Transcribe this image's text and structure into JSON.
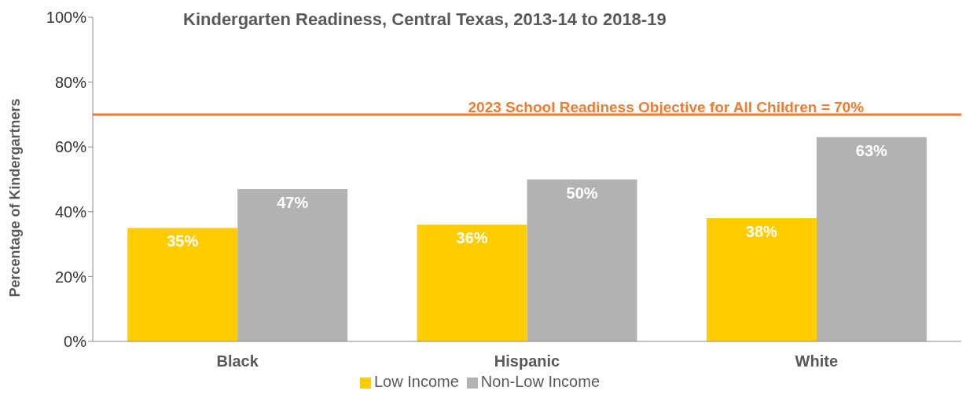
{
  "chart_data": {
    "type": "bar",
    "title": "Kindergarten Readiness, Central Texas, 2013-14 to 2018-19",
    "ylabel": "Percentage of Kindergartners",
    "categories": [
      "Black",
      "Hispanic",
      "White"
    ],
    "series": [
      {
        "name": "Low Income",
        "color": "#ffcc00",
        "values": [
          35,
          36,
          38
        ],
        "value_labels": [
          "35%",
          "36%",
          "38%"
        ]
      },
      {
        "name": "Non-Low Income",
        "color": "#b2b2b2",
        "values": [
          47,
          50,
          63
        ],
        "value_labels": [
          "47%",
          "50%",
          "63%"
        ]
      }
    ],
    "ylim": [
      0,
      100
    ],
    "yticks": [
      {
        "value": 0,
        "label": "0%"
      },
      {
        "value": 20,
        "label": "20%"
      },
      {
        "value": 40,
        "label": "40%"
      },
      {
        "value": 60,
        "label": "60%"
      },
      {
        "value": 80,
        "label": "80%"
      },
      {
        "value": 100,
        "label": "100%"
      }
    ],
    "ref_lines": [
      {
        "axis": "y",
        "value": 70,
        "label": "2023 School Readiness Objective for All Children = 70%",
        "color": "#ed7d31"
      }
    ],
    "grid": false,
    "legend": "bottom"
  }
}
